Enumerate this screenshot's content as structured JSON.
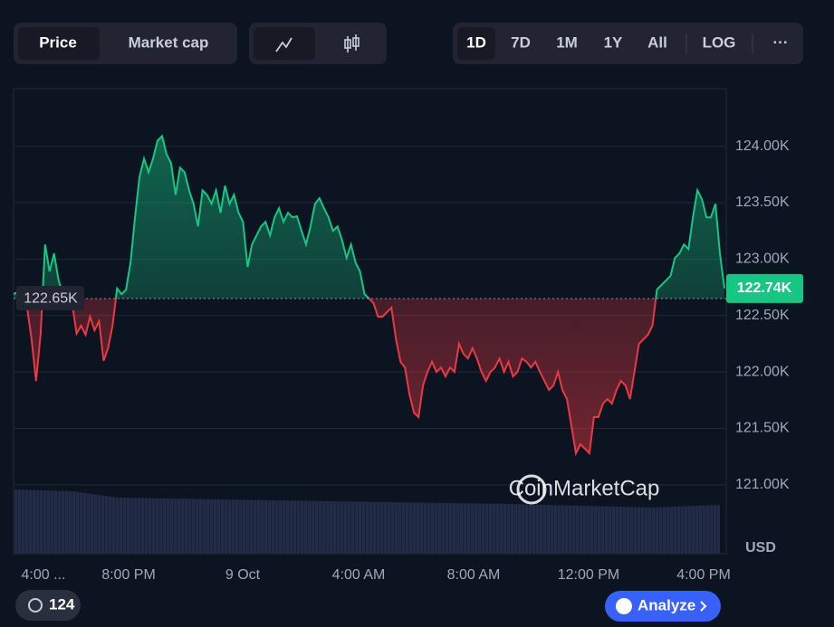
{
  "toolbar": {
    "view_tabs": [
      "Price",
      "Market cap"
    ],
    "ranges": [
      "1D",
      "7D",
      "1M",
      "1Y",
      "All"
    ],
    "log": "LOG",
    "more": "···"
  },
  "chart_data": {
    "type": "line",
    "currency": "USD",
    "watermark": "CoinMarketCap",
    "xtick_labels": [
      "4:00 ...",
      "8:00 PM",
      "9 Oct",
      "4:00 AM",
      "8:00 AM",
      "12:00 PM",
      "4:00 PM"
    ],
    "ylim": [
      120390,
      124510
    ],
    "yticks": [
      {
        "value": 124000,
        "label": "124.00K"
      },
      {
        "value": 123500,
        "label": "123.50K"
      },
      {
        "value": 123000,
        "label": "123.00K"
      },
      {
        "value": 122500,
        "label": "122.50K"
      },
      {
        "value": 122000,
        "label": "122.00K"
      },
      {
        "value": 121500,
        "label": "121.50K"
      },
      {
        "value": 121000,
        "label": "121.00K"
      }
    ],
    "grid": true,
    "baseline": {
      "value": 122650,
      "label": "122.65K"
    },
    "current": {
      "value": 122740,
      "label": "122.74K"
    },
    "up_color": "#16c784",
    "down_color": "#ea3943",
    "values": [
      122690,
      122710,
      122650,
      122570,
      122290,
      121920,
      122330,
      123130,
      122890,
      123050,
      122810,
      122690,
      122650,
      122610,
      122340,
      122410,
      122330,
      122490,
      122370,
      122450,
      122100,
      122210,
      122410,
      122740,
      122690,
      122730,
      122970,
      123370,
      123730,
      123890,
      123770,
      123890,
      124050,
      124090,
      123930,
      123850,
      123570,
      123810,
      123770,
      123610,
      123490,
      123290,
      123610,
      123570,
      123490,
      123610,
      123410,
      123650,
      123490,
      123570,
      123410,
      123330,
      122930,
      123130,
      123210,
      123290,
      123330,
      123210,
      123370,
      123450,
      123330,
      123410,
      123370,
      123380,
      123250,
      123130,
      123290,
      123490,
      123540,
      123450,
      123370,
      123250,
      123290,
      123170,
      123010,
      123130,
      122970,
      122890,
      122690,
      122650,
      122610,
      122490,
      122490,
      122530,
      122570,
      122290,
      122090,
      122040,
      121800,
      121640,
      121600,
      121880,
      122000,
      122090,
      122000,
      122040,
      121960,
      122040,
      122000,
      122250,
      122160,
      122120,
      122210,
      122120,
      122000,
      121920,
      122000,
      122040,
      122120,
      122000,
      122090,
      121960,
      122000,
      122120,
      122090,
      122040,
      122090,
      122000,
      121920,
      121840,
      121880,
      122000,
      121840,
      121760,
      121520,
      121280,
      121360,
      121320,
      121280,
      121600,
      121600,
      121720,
      121760,
      121720,
      121840,
      121920,
      121880,
      121760,
      122000,
      122250,
      122290,
      122330,
      122410,
      122730,
      122770,
      122810,
      122850,
      123010,
      123050,
      123130,
      123090,
      123370,
      123610,
      123530,
      123370,
      123370,
      123490,
      123050,
      122740
    ]
  },
  "footer": {
    "history_count": "124",
    "analyze": "Analyze"
  }
}
